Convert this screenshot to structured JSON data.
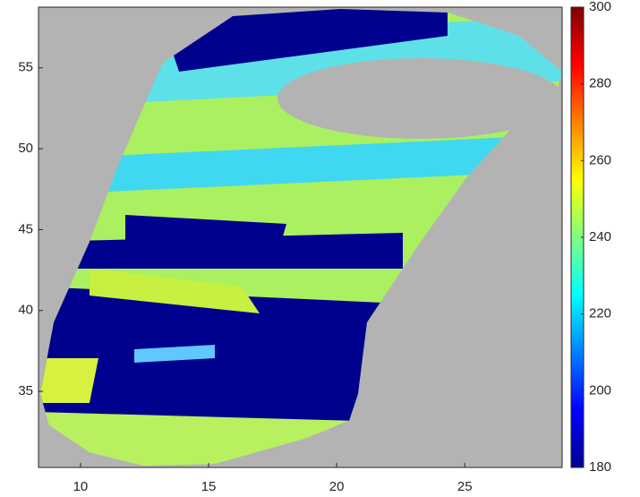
{
  "chart_data": {
    "type": "heatmap",
    "xlim": [
      8.36,
      28.8
    ],
    "ylim": [
      30.3,
      58.75
    ],
    "xticks": [
      10,
      15,
      20,
      25
    ],
    "yticks": [
      35,
      40,
      45,
      50,
      55
    ],
    "clim": [
      180,
      300
    ],
    "cticks": [
      180,
      200,
      220,
      240,
      260,
      280,
      300
    ],
    "colormap": [
      "#00008f",
      "#0000ff",
      "#0080ff",
      "#00ffff",
      "#80ff80",
      "#ffff00",
      "#ff8000",
      "#ff0000",
      "#800000"
    ],
    "background": "#b3b3b3"
  }
}
